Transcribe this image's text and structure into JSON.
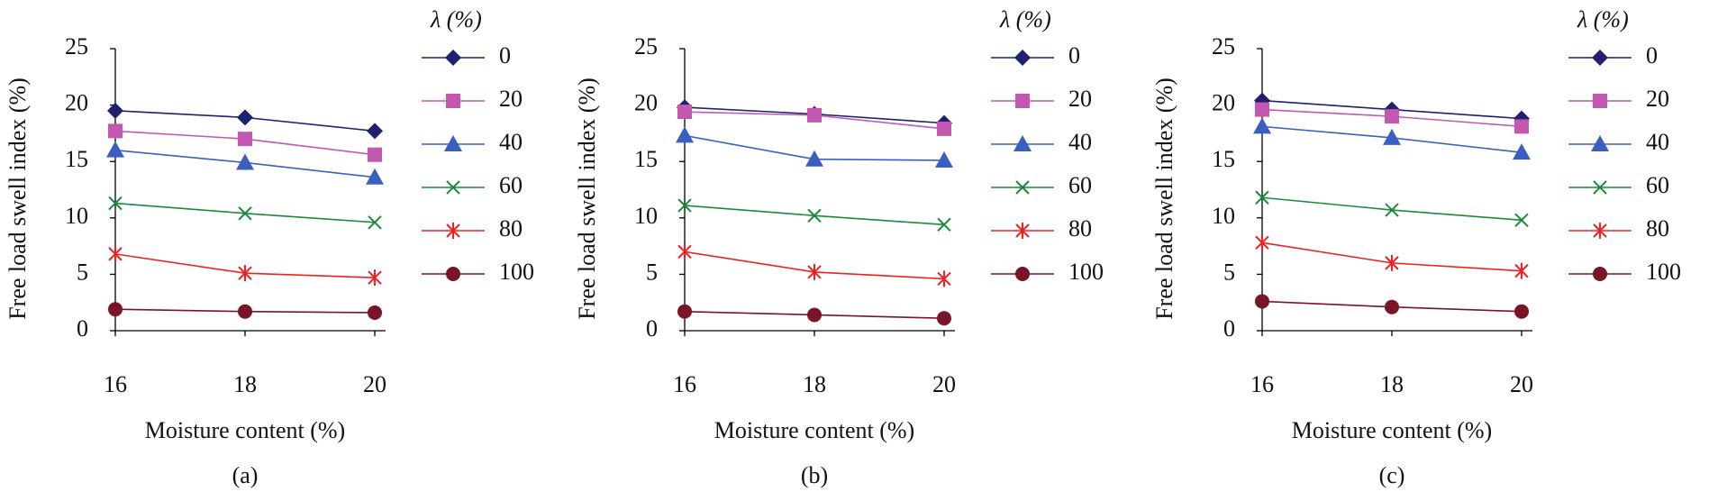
{
  "chart_data": [
    {
      "type": "line",
      "caption": "(a)",
      "x_label": "Moisture content (%)",
      "y_label": "Free load swell index (%)",
      "legend_title": "λ (%)",
      "x": [
        16,
        18,
        20
      ],
      "xlim": [
        16,
        20
      ],
      "xticks": [
        16,
        18,
        20
      ],
      "ylim": [
        0,
        25
      ],
      "yticks": [
        0,
        5,
        10,
        15,
        20,
        25
      ],
      "series": [
        {
          "name": "0",
          "color": "#1f2070",
          "marker": "diamond",
          "values": [
            19.5,
            18.9,
            17.7
          ]
        },
        {
          "name": "20",
          "color": "#c457b0",
          "marker": "square",
          "values": [
            17.7,
            17.0,
            15.6
          ]
        },
        {
          "name": "40",
          "color": "#3a5fc0",
          "marker": "triangle",
          "values": [
            16.0,
            14.9,
            13.6
          ]
        },
        {
          "name": "60",
          "color": "#1a8a3a",
          "marker": "x",
          "values": [
            11.3,
            10.4,
            9.6
          ]
        },
        {
          "name": "80",
          "color": "#f02020",
          "marker": "asterisk",
          "values": [
            6.8,
            5.1,
            4.7
          ]
        },
        {
          "name": "100",
          "color": "#7a1428",
          "marker": "circle",
          "values": [
            1.9,
            1.7,
            1.6
          ]
        }
      ]
    },
    {
      "type": "line",
      "caption": "(b)",
      "x_label": "Moisture content (%)",
      "y_label": "Free load swell index (%)",
      "legend_title": "λ (%)",
      "x": [
        16,
        18,
        20
      ],
      "xlim": [
        16,
        20
      ],
      "xticks": [
        16,
        18,
        20
      ],
      "ylim": [
        0,
        25
      ],
      "yticks": [
        0,
        5,
        10,
        15,
        20,
        25
      ],
      "series": [
        {
          "name": "0",
          "color": "#1f2070",
          "marker": "diamond",
          "values": [
            19.8,
            19.2,
            18.4
          ]
        },
        {
          "name": "20",
          "color": "#c457b0",
          "marker": "square",
          "values": [
            19.4,
            19.1,
            17.9
          ]
        },
        {
          "name": "40",
          "color": "#3a5fc0",
          "marker": "triangle",
          "values": [
            17.3,
            15.2,
            15.1
          ]
        },
        {
          "name": "60",
          "color": "#1a8a3a",
          "marker": "x",
          "values": [
            11.1,
            10.2,
            9.4
          ]
        },
        {
          "name": "80",
          "color": "#f02020",
          "marker": "asterisk",
          "values": [
            7.0,
            5.2,
            4.6
          ]
        },
        {
          "name": "100",
          "color": "#7a1428",
          "marker": "circle",
          "values": [
            1.7,
            1.4,
            1.1
          ]
        }
      ]
    },
    {
      "type": "line",
      "caption": "(c)",
      "x_label": "Moisture content (%)",
      "y_label": "Free load swell index (%)",
      "legend_title": "λ (%)",
      "x": [
        16,
        18,
        20
      ],
      "xlim": [
        16,
        20
      ],
      "xticks": [
        16,
        18,
        20
      ],
      "ylim": [
        0,
        25
      ],
      "yticks": [
        0,
        5,
        10,
        15,
        20,
        25
      ],
      "series": [
        {
          "name": "0",
          "color": "#1f2070",
          "marker": "diamond",
          "values": [
            20.4,
            19.6,
            18.8
          ]
        },
        {
          "name": "20",
          "color": "#c457b0",
          "marker": "square",
          "values": [
            19.6,
            19.0,
            18.1
          ]
        },
        {
          "name": "40",
          "color": "#3a5fc0",
          "marker": "triangle",
          "values": [
            18.1,
            17.1,
            15.8
          ]
        },
        {
          "name": "60",
          "color": "#1a8a3a",
          "marker": "x",
          "values": [
            11.8,
            10.7,
            9.8
          ]
        },
        {
          "name": "80",
          "color": "#f02020",
          "marker": "asterisk",
          "values": [
            7.8,
            6.0,
            5.3
          ]
        },
        {
          "name": "100",
          "color": "#7a1428",
          "marker": "circle",
          "values": [
            2.6,
            2.1,
            1.7
          ]
        }
      ]
    }
  ]
}
